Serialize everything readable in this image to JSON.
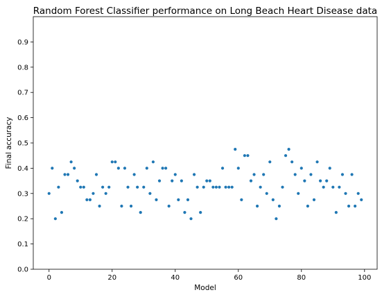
{
  "chart_data": {
    "type": "scatter",
    "title": "Random Forest Classifier performance on Long Beach Heart Disease data",
    "xlabel": "Model",
    "ylabel": "Final accuracy",
    "xlim": [
      -5,
      104
    ],
    "ylim": [
      0,
      1
    ],
    "xticks": [
      0,
      20,
      40,
      60,
      80,
      100
    ],
    "yticks": [
      0.0,
      0.1,
      0.2,
      0.3,
      0.4,
      0.5,
      0.6,
      0.7,
      0.8,
      0.9
    ],
    "grid": false,
    "marker_color": "#1f77b4",
    "x": [
      0,
      1,
      2,
      3,
      4,
      5,
      6,
      7,
      8,
      9,
      10,
      11,
      12,
      13,
      14,
      15,
      16,
      17,
      18,
      19,
      20,
      21,
      22,
      23,
      24,
      25,
      26,
      27,
      28,
      29,
      30,
      31,
      32,
      33,
      34,
      35,
      36,
      37,
      38,
      39,
      40,
      41,
      42,
      43,
      44,
      45,
      46,
      47,
      48,
      49,
      50,
      51,
      52,
      53,
      54,
      55,
      56,
      57,
      58,
      59,
      60,
      61,
      62,
      63,
      64,
      65,
      66,
      67,
      68,
      69,
      70,
      71,
      72,
      73,
      74,
      75,
      76,
      77,
      78,
      79,
      80,
      81,
      82,
      83,
      84,
      85,
      86,
      87,
      88,
      89,
      90,
      91,
      92,
      93,
      94,
      95,
      96,
      97,
      98,
      99
    ],
    "y": [
      0.3,
      0.4,
      0.2,
      0.325,
      0.225,
      0.375,
      0.375,
      0.425,
      0.4,
      0.35,
      0.325,
      0.325,
      0.275,
      0.275,
      0.3,
      0.375,
      0.25,
      0.325,
      0.3,
      0.325,
      0.425,
      0.425,
      0.4,
      0.25,
      0.4,
      0.325,
      0.25,
      0.375,
      0.325,
      0.225,
      0.325,
      0.4,
      0.3,
      0.425,
      0.275,
      0.35,
      0.4,
      0.4,
      0.25,
      0.35,
      0.375,
      0.275,
      0.35,
      0.225,
      0.275,
      0.2,
      0.375,
      0.325,
      0.225,
      0.325,
      0.35,
      0.35,
      0.325,
      0.325,
      0.325,
      0.4,
      0.325,
      0.325,
      0.325,
      0.475,
      0.4,
      0.275,
      0.45,
      0.45,
      0.35,
      0.375,
      0.25,
      0.325,
      0.375,
      0.3,
      0.425,
      0.275,
      0.2,
      0.25,
      0.325,
      0.45,
      0.475,
      0.425,
      0.375,
      0.3,
      0.4,
      0.35,
      0.25,
      0.375,
      0.275,
      0.425,
      0.35,
      0.325,
      0.35,
      0.4,
      0.325,
      0.225,
      0.325,
      0.375,
      0.3,
      0.25,
      0.375,
      0.25,
      0.3,
      0.275
    ]
  }
}
